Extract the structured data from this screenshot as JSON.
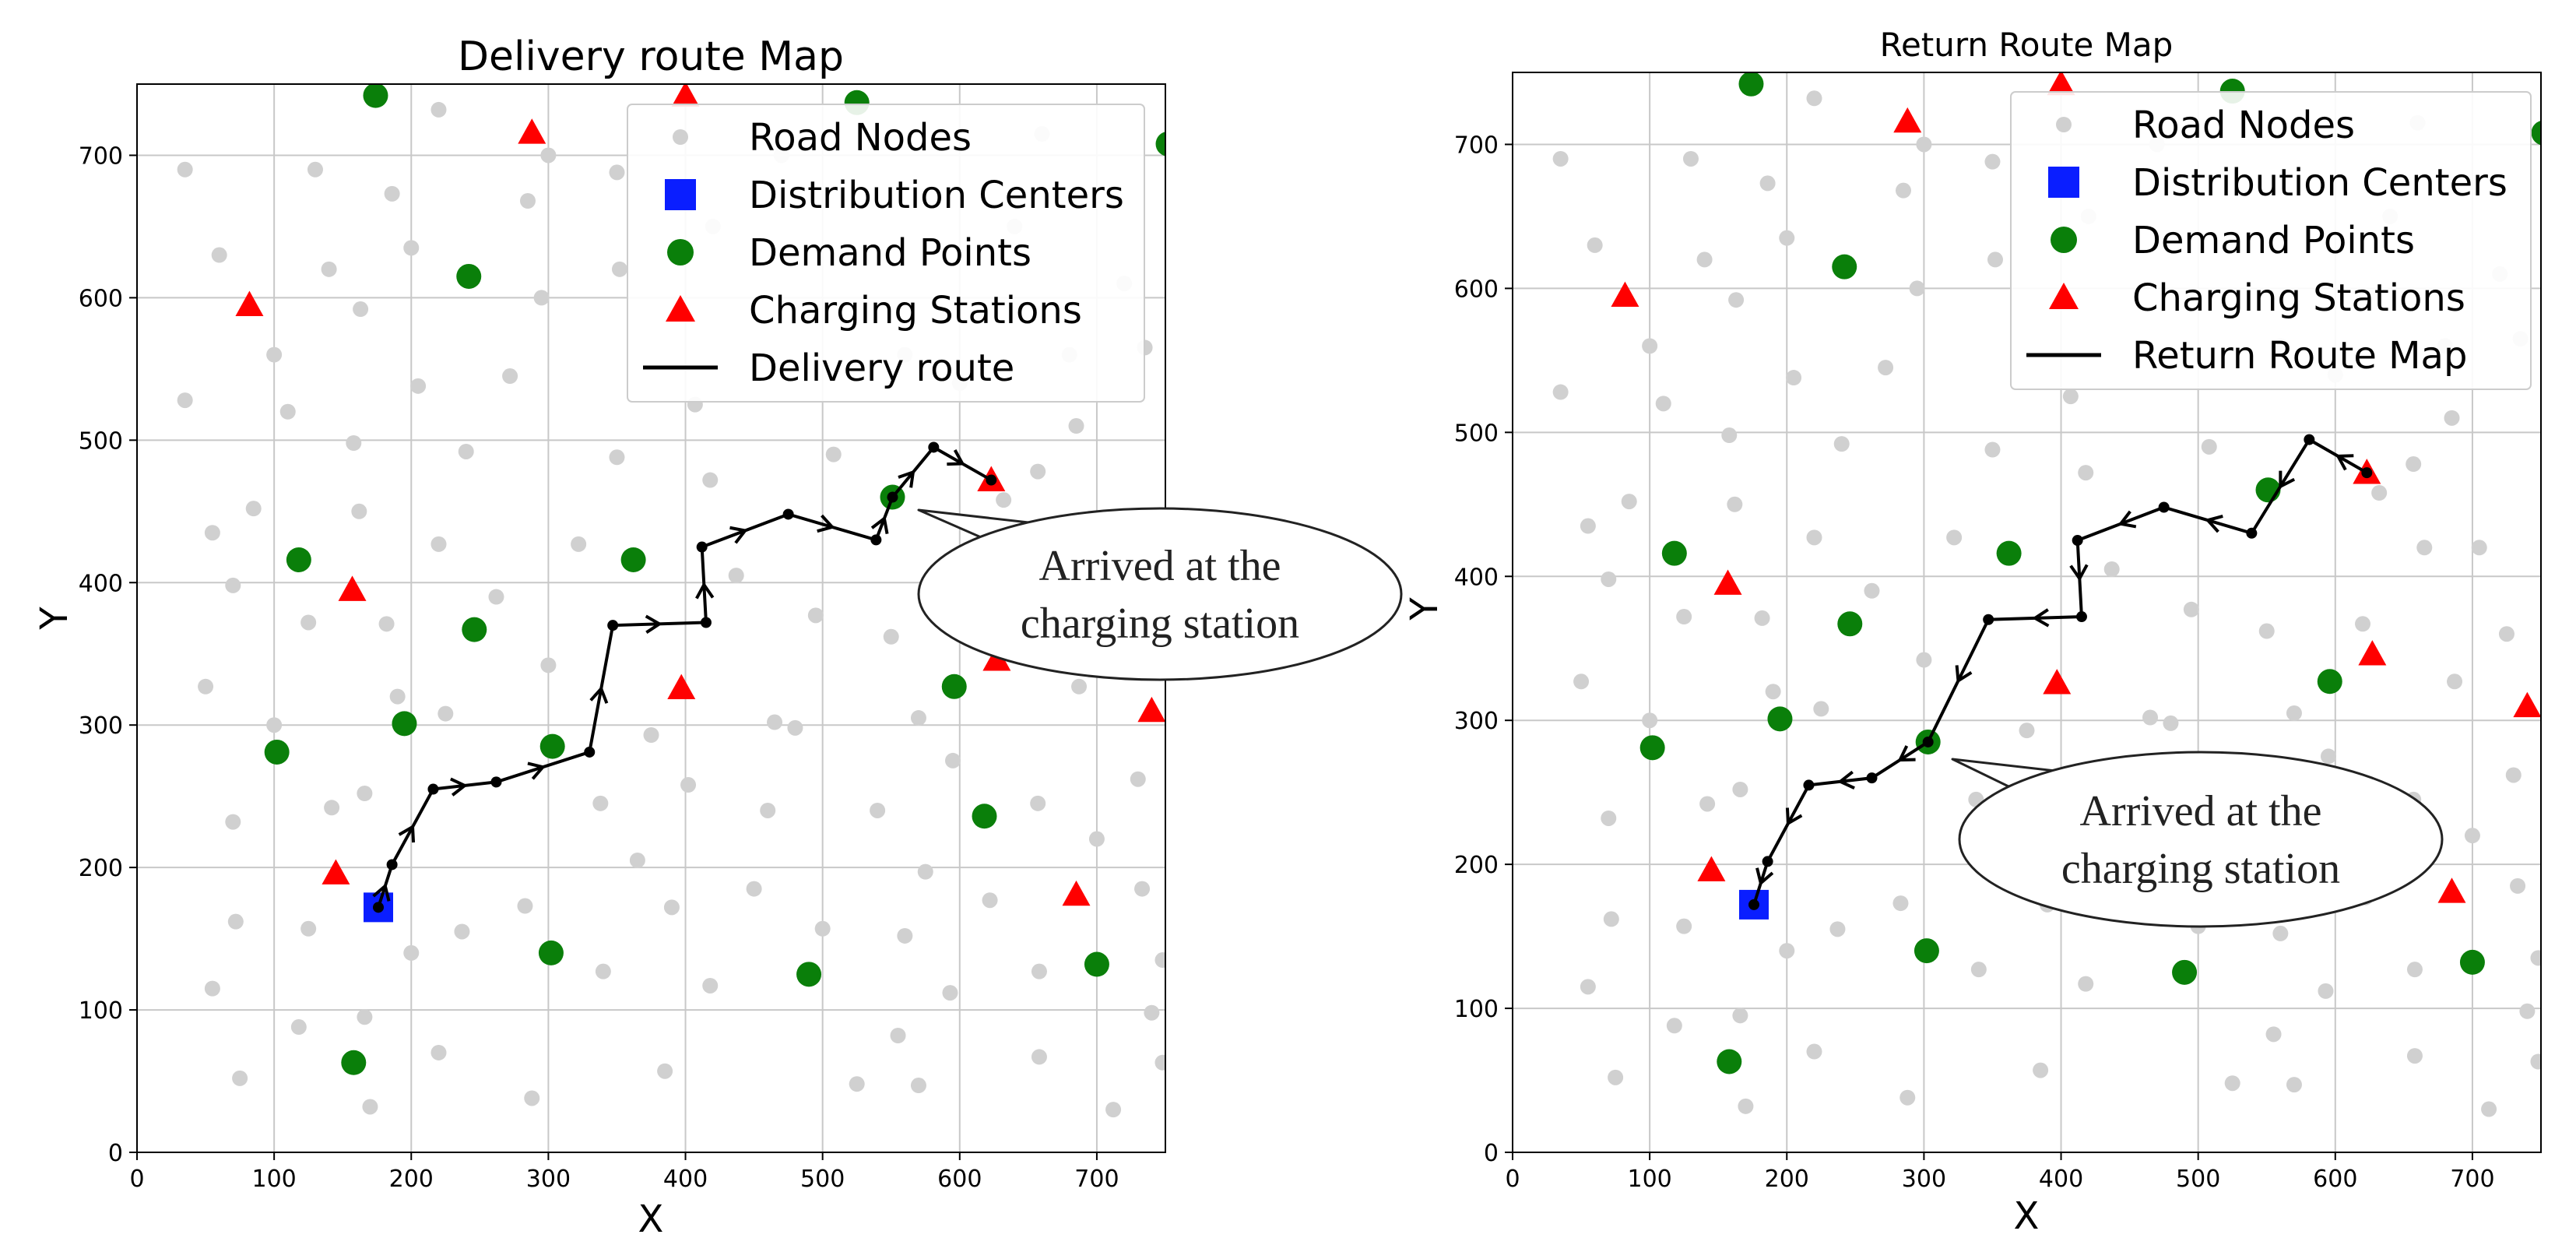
{
  "chart_data": [
    {
      "type": "scatter",
      "title": "Delivery route Map",
      "xlabel": "X",
      "ylabel": "Y",
      "xlim": [
        0,
        750
      ],
      "ylim": [
        0,
        750
      ],
      "xticks": [
        0,
        100,
        200,
        300,
        400,
        500,
        600,
        700
      ],
      "yticks": [
        0,
        100,
        200,
        300,
        400,
        500,
        600,
        700
      ],
      "grid": true,
      "legend_position": "top-right",
      "legend": [
        "Road Nodes",
        "Distribution Centers",
        "Demand Points",
        "Charging Stations",
        "Delivery route"
      ],
      "annotation": {
        "line1": "Arrived at the",
        "line2": "charging station",
        "target": [
          550,
          460
        ]
      },
      "route_direction": "forward",
      "route": [
        [
          176,
          172
        ],
        [
          186,
          202
        ],
        [
          216,
          255
        ],
        [
          262,
          260
        ],
        [
          330,
          281
        ],
        [
          347,
          370
        ],
        [
          415,
          372
        ],
        [
          412,
          425
        ],
        [
          475,
          448
        ],
        [
          539,
          430
        ],
        [
          551,
          460
        ],
        [
          581,
          495
        ],
        [
          623,
          472
        ]
      ]
    },
    {
      "type": "scatter",
      "title": "Return Route Map",
      "xlabel": "X",
      "ylabel": "Y",
      "xlim": [
        0,
        750
      ],
      "ylim": [
        0,
        750
      ],
      "xticks": [
        0,
        100,
        200,
        300,
        400,
        500,
        600,
        700
      ],
      "yticks": [
        0,
        100,
        200,
        300,
        400,
        500,
        600,
        700
      ],
      "grid": true,
      "legend_position": "top-right",
      "legend": [
        "Road Nodes",
        "Distribution Centers",
        "Demand Points",
        "Charging Stations",
        "Return Route Map"
      ],
      "annotation": {
        "line1": "Arrived at the",
        "line2": "charging station",
        "target": [
          303,
          285
        ]
      },
      "route_direction": "backward",
      "route": [
        [
          176,
          172
        ],
        [
          186,
          202
        ],
        [
          216,
          255
        ],
        [
          262,
          260
        ],
        [
          303,
          285
        ],
        [
          347,
          370
        ],
        [
          415,
          372
        ],
        [
          412,
          425
        ],
        [
          475,
          448
        ],
        [
          539,
          430
        ],
        [
          581,
          495
        ],
        [
          623,
          472
        ]
      ]
    }
  ],
  "shared": {
    "road_nodes": [
      [
        35,
        690
      ],
      [
        60,
        630
      ],
      [
        35,
        528
      ],
      [
        100,
        560
      ],
      [
        110,
        520
      ],
      [
        55,
        435
      ],
      [
        70,
        398
      ],
      [
        85,
        452
      ],
      [
        50,
        327
      ],
      [
        100,
        300
      ],
      [
        125,
        372
      ],
      [
        158,
        498
      ],
      [
        162,
        450
      ],
      [
        182,
        371
      ],
      [
        190,
        320
      ],
      [
        70,
        232
      ],
      [
        72,
        162
      ],
      [
        55,
        115
      ],
      [
        75,
        52
      ],
      [
        125,
        157
      ],
      [
        118,
        88
      ],
      [
        142,
        242
      ],
      [
        166,
        252
      ],
      [
        130,
        690
      ],
      [
        140,
        620
      ],
      [
        163,
        592
      ],
      [
        186,
        673
      ],
      [
        200,
        635
      ],
      [
        205,
        538
      ],
      [
        220,
        732
      ],
      [
        240,
        492
      ],
      [
        220,
        427
      ],
      [
        262,
        390
      ],
      [
        225,
        308
      ],
      [
        200,
        140
      ],
      [
        237,
        155
      ],
      [
        220,
        70
      ],
      [
        166,
        95
      ],
      [
        170,
        32
      ],
      [
        283,
        173
      ],
      [
        288,
        38
      ],
      [
        285,
        668
      ],
      [
        295,
        600
      ],
      [
        272,
        545
      ],
      [
        300,
        342
      ],
      [
        322,
        427
      ],
      [
        338,
        245
      ],
      [
        350,
        488
      ],
      [
        352,
        620
      ],
      [
        350,
        688
      ],
      [
        340,
        127
      ],
      [
        365,
        205
      ],
      [
        375,
        293
      ],
      [
        385,
        57
      ],
      [
        390,
        172
      ],
      [
        402,
        258
      ],
      [
        407,
        525
      ],
      [
        418,
        472
      ],
      [
        418,
        117
      ],
      [
        437,
        405
      ],
      [
        450,
        185
      ],
      [
        460,
        240
      ],
      [
        465,
        302
      ],
      [
        480,
        298
      ],
      [
        495,
        377
      ],
      [
        500,
        157
      ],
      [
        508,
        490
      ],
      [
        525,
        48
      ],
      [
        540,
        240
      ],
      [
        550,
        362
      ],
      [
        560,
        152
      ],
      [
        570,
        305
      ],
      [
        575,
        197
      ],
      [
        593,
        112
      ],
      [
        555,
        82
      ],
      [
        570,
        47
      ],
      [
        595,
        275
      ],
      [
        620,
        367
      ],
      [
        622,
        177
      ],
      [
        632,
        458
      ],
      [
        657,
        478
      ],
      [
        657,
        245
      ],
      [
        658,
        127
      ],
      [
        658,
        67
      ],
      [
        665,
        420
      ],
      [
        685,
        510
      ],
      [
        687,
        327
      ],
      [
        700,
        220
      ],
      [
        712,
        30
      ],
      [
        730,
        262
      ],
      [
        733,
        185
      ],
      [
        740,
        98
      ],
      [
        748,
        135
      ],
      [
        748,
        63
      ],
      [
        640,
        650
      ],
      [
        660,
        715
      ],
      [
        720,
        610
      ],
      [
        735,
        565
      ],
      [
        705,
        420
      ],
      [
        725,
        360
      ],
      [
        300,
        700
      ],
      [
        420,
        650
      ],
      [
        470,
        700
      ],
      [
        560,
        560
      ],
      [
        600,
        540
      ],
      [
        680,
        560
      ]
    ],
    "distribution_centers": [
      [
        176,
        172
      ]
    ],
    "demand_points": [
      [
        174,
        742
      ],
      [
        242,
        615
      ],
      [
        118,
        416
      ],
      [
        246,
        367
      ],
      [
        195,
        301
      ],
      [
        102,
        281
      ],
      [
        303,
        285
      ],
      [
        362,
        416
      ],
      [
        302,
        140
      ],
      [
        490,
        125
      ],
      [
        158,
        63
      ],
      [
        551,
        460
      ],
      [
        596,
        327
      ],
      [
        618,
        236
      ],
      [
        700,
        132
      ],
      [
        525,
        737
      ],
      [
        752,
        708
      ]
    ],
    "charging_stations": [
      [
        288,
        716
      ],
      [
        400,
        742
      ],
      [
        82,
        595
      ],
      [
        157,
        395
      ],
      [
        397,
        326
      ],
      [
        145,
        196
      ],
      [
        627,
        346
      ],
      [
        623,
        472
      ],
      [
        740,
        310
      ],
      [
        685,
        181
      ]
    ],
    "colors": {
      "road": "#d0d0d0",
      "distribution": "#0a1eff",
      "demand": "#0a7f0a",
      "charging": "#ff0000",
      "route": "#000000"
    }
  }
}
